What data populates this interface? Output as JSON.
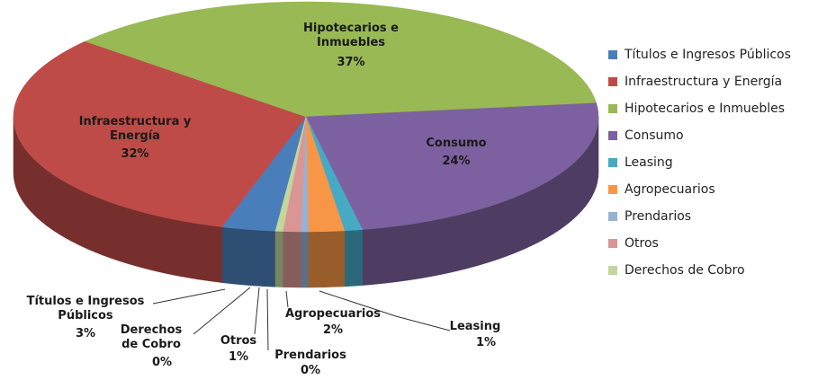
{
  "chart_data": {
    "type": "pie3d",
    "categories": [
      "Títulos e Ingresos Públicos",
      "Infraestructura y Energía",
      "Hipotecarios e Inmuebles",
      "Consumo",
      "Leasing",
      "Agropecuarios",
      "Prendarios",
      "Otros",
      "Derechos de Cobro"
    ],
    "values": [
      3,
      32,
      37,
      24,
      1,
      2,
      0.4,
      1,
      0.4
    ],
    "value_labels": [
      "3%",
      "32%",
      "37%",
      "24%",
      "1%",
      "2%",
      "0%",
      "1%",
      "0%"
    ],
    "colors": [
      "#4a7ebb",
      "#be4b48",
      "#98b954",
      "#7d60a0",
      "#46aac5",
      "#f79646",
      "#95b3d7",
      "#d99694",
      "#c3d69b"
    ],
    "legend": "right"
  }
}
